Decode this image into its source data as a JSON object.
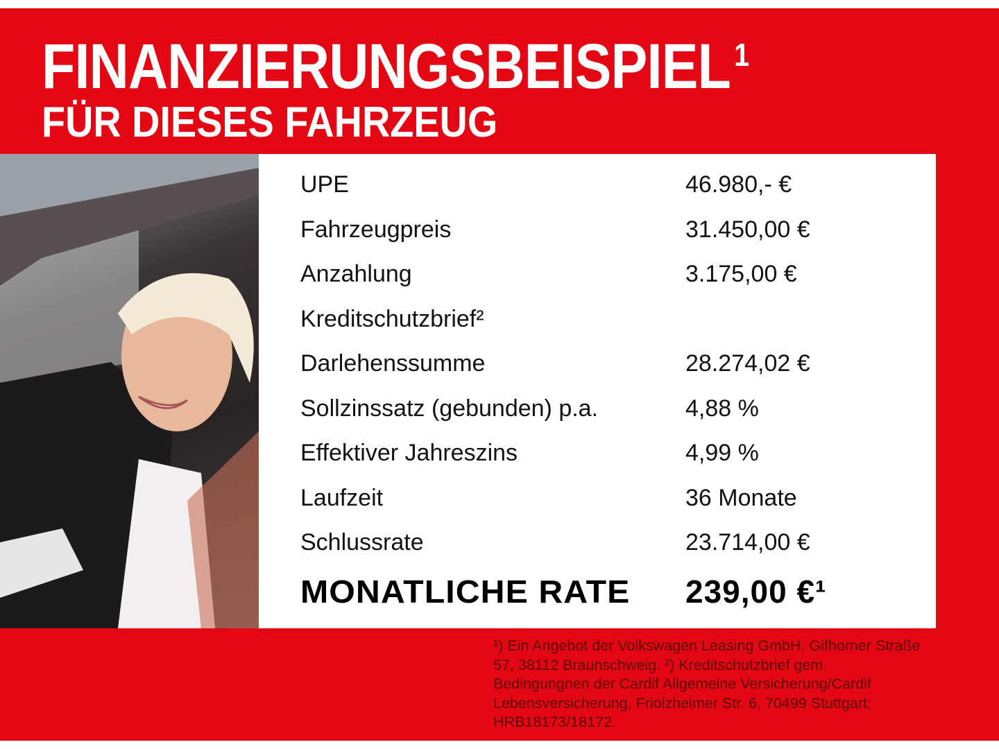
{
  "header": {
    "title": "FINANZIERUNGSBEISPIEL",
    "title_sup": "1",
    "subtitle": "FÜR DIESES FAHRZEUG"
  },
  "table": {
    "rows": [
      {
        "label": "UPE",
        "value": "46.980,- €"
      },
      {
        "label": "Fahrzeugpreis",
        "value": "31.450,00 €"
      },
      {
        "label": "Anzahlung",
        "value": "3.175,00 €"
      },
      {
        "label": "Kreditschutzbrief²",
        "value": ""
      },
      {
        "label": "Darlehenssumme",
        "value": "28.274,02 €"
      },
      {
        "label": "Sollzinssatz (gebunden) p.a.",
        "value": "4,88 %"
      },
      {
        "label": "Effektiver Jahreszins",
        "value": "4,99 %"
      },
      {
        "label": "Laufzeit",
        "value": "36 Monate"
      },
      {
        "label": "Schlussrate",
        "value": "23.714,00 €"
      }
    ],
    "total": {
      "label": "MONATLICHE RATE",
      "value": "239,00 €¹"
    }
  },
  "footnote": "¹) Ein Angebot der Volkswagen Leasing GmbH, Gifhorner Straße 57, 38112 Braunschweig. ²) Kreditschutzbrief gem. Bedingungnen der Cardif Allgemeine Versicherung/Cardif Lebensversicherung, Friolzheimer Str. 6, 70499 Stuttgart; HRB18173/18172.",
  "colors": {
    "brand_red": "#e30613",
    "footnote_text": "#5a0808"
  }
}
